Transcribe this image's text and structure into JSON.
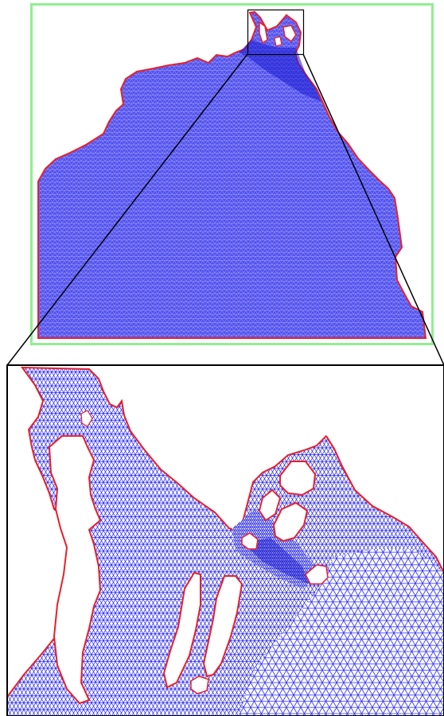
{
  "figure": {
    "kind": "triangulated mesh with zoomed inset",
    "panels": [
      "overview-mesh",
      "zoom-inset"
    ],
    "colors": {
      "background": "#ffffff",
      "mesh_fill": "#3d3df2",
      "mesh_lines": "#1a1aff",
      "mesh_dense": "#1010c8",
      "boundary": "#e8202a",
      "domain_frame": "#90ee90",
      "zoom_connector": "#000000",
      "hole_fill": "#ffffff"
    },
    "visible_text": []
  }
}
